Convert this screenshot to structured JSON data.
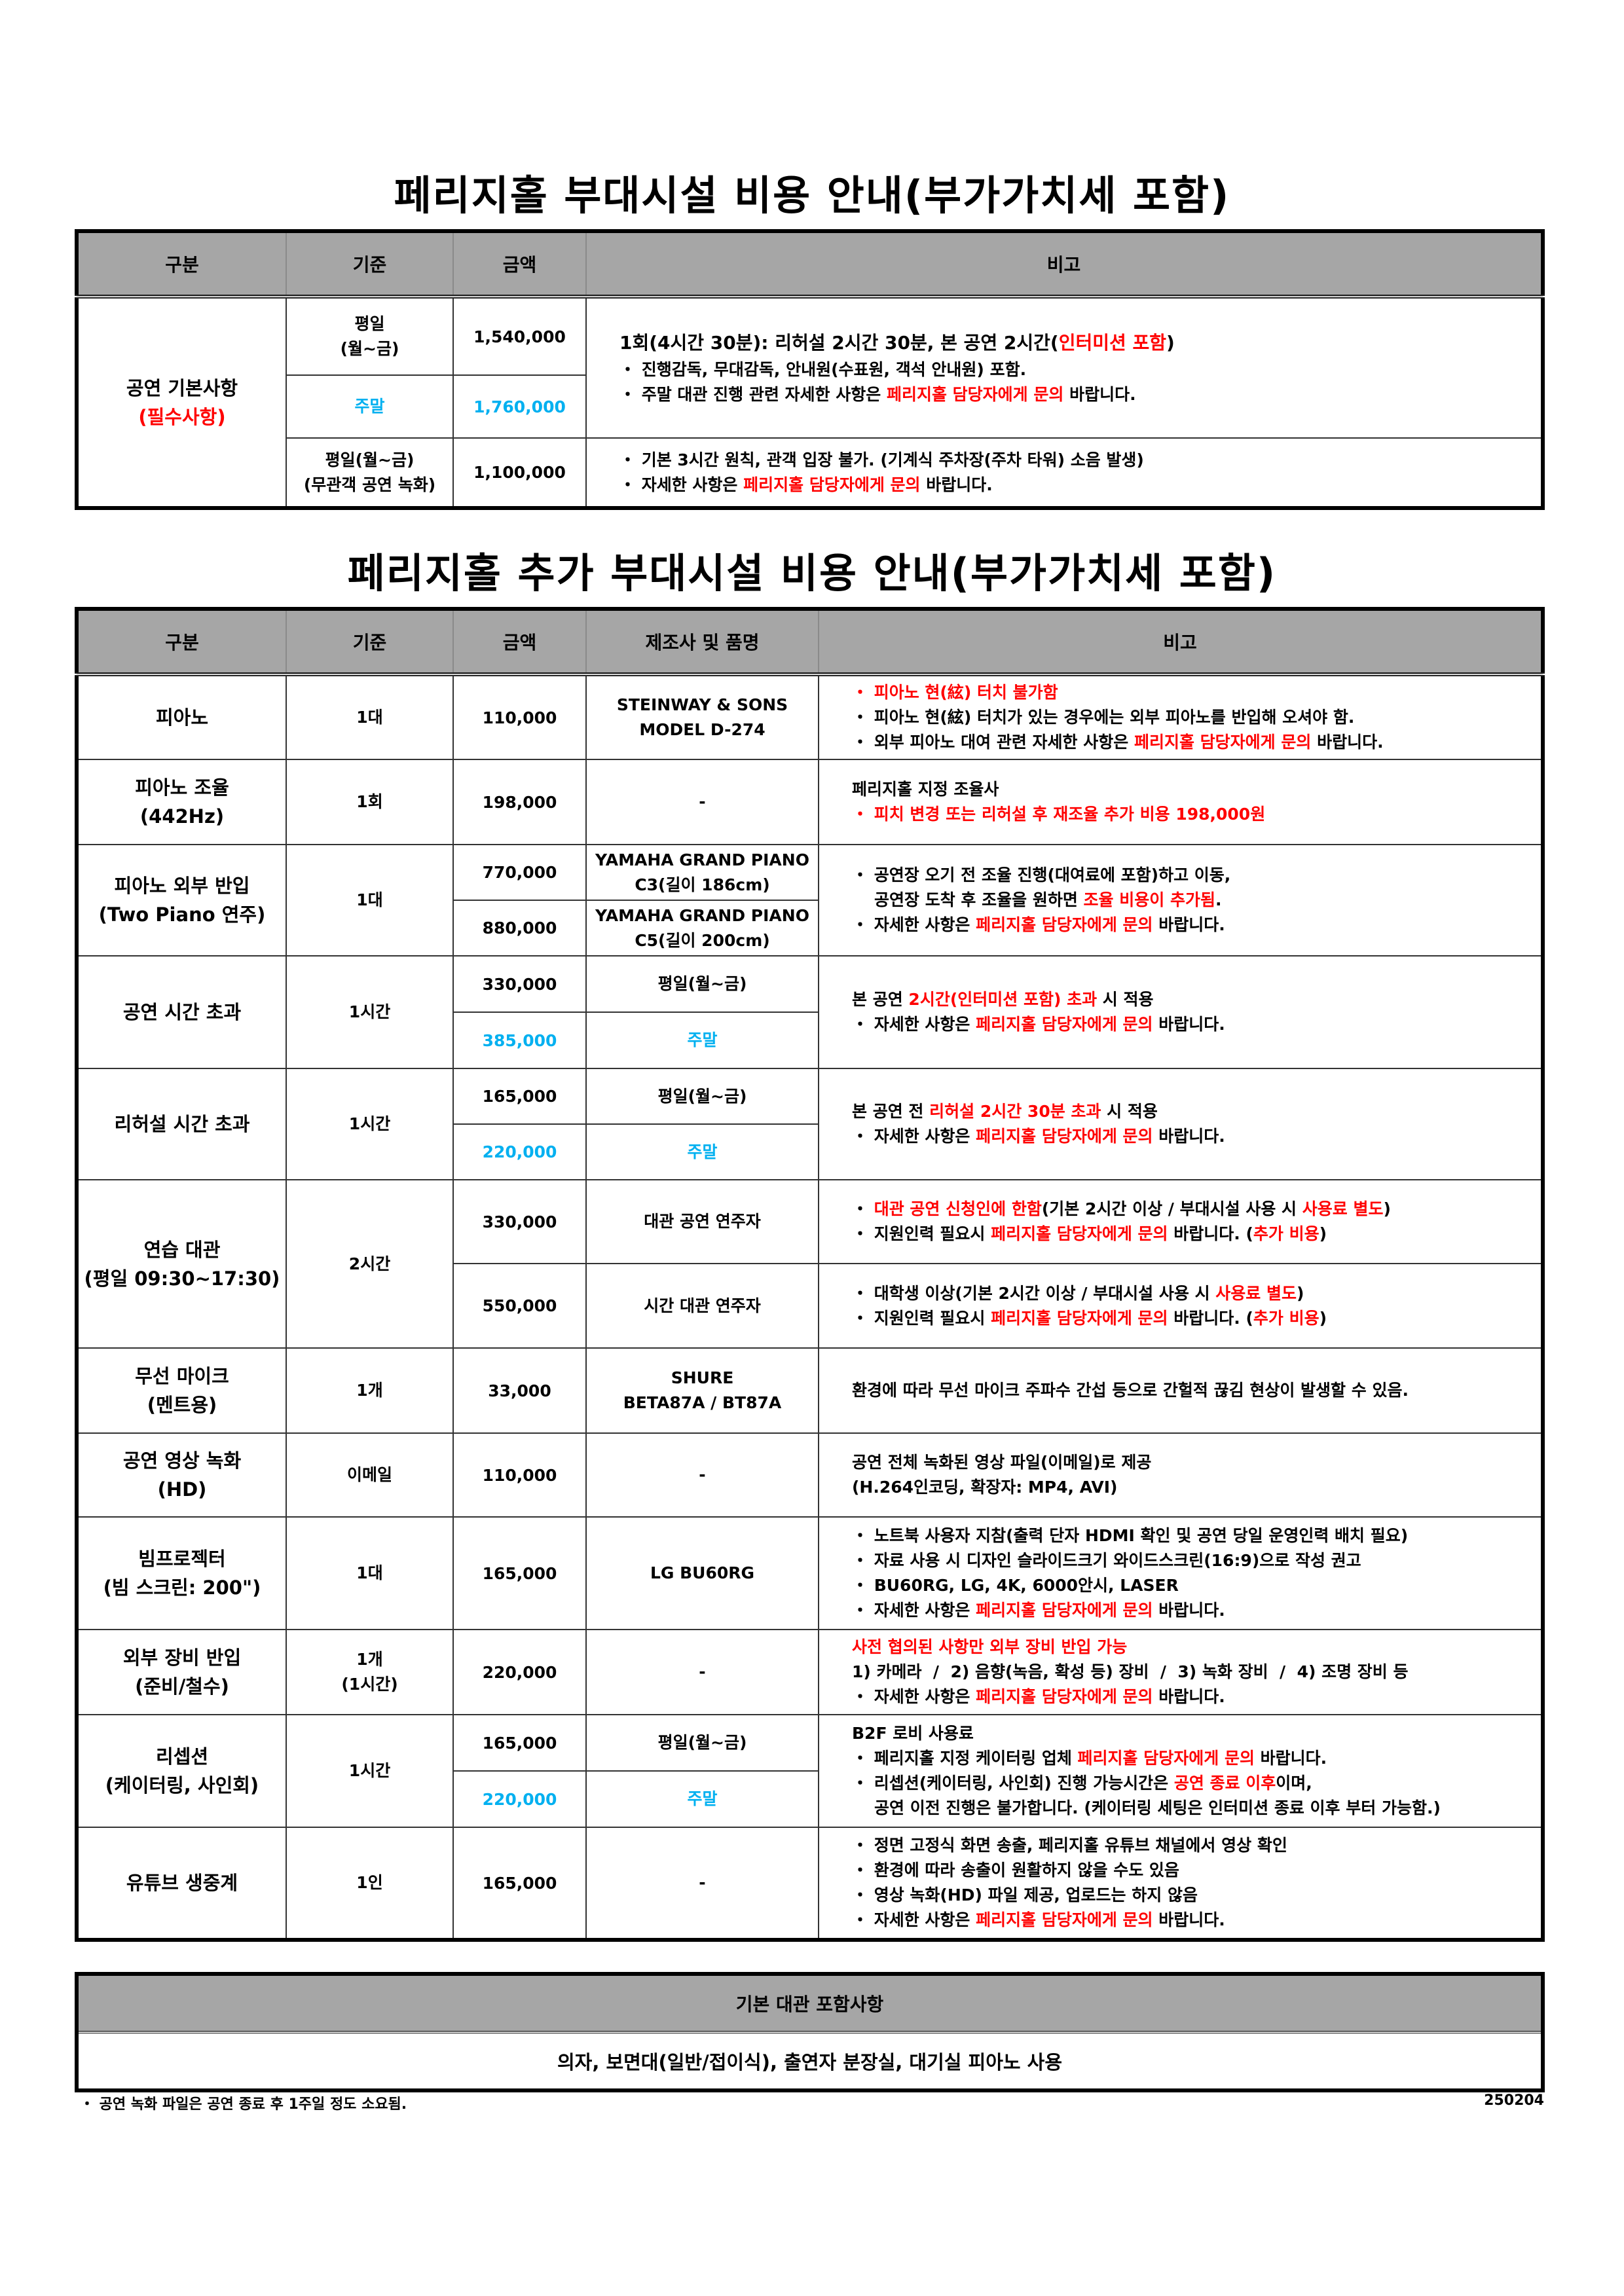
{
  "table1": {
    "title": "페리지홀 부대시설 비용 안내(부가가치세 포함)",
    "headers": [
      "구분",
      "기준",
      "금액",
      "비고"
    ],
    "category": [
      [
        [
          "공연 기본사항"
        ]
      ],
      [
        [
          "(필수사항)",
          "r"
        ]
      ]
    ],
    "subs": [
      {
        "std": [
          [
            [
              "평일"
            ]
          ],
          [
            [
              "(월~금)"
            ]
          ]
        ],
        "price": [
          "1,540,000"
        ],
        "remark": [
          {
            "big": true,
            "s": [
              [
                "1회(4시간 30분): 리허설 2시간 30분, 본 공연 2시간("
              ],
              [
                "인터미션 포함",
                "r"
              ],
              [
                ")"
              ]
            ]
          },
          {
            "s": [
              [
                "・ 진행감독, 무대감독, 안내원(수표원, 객석 안내원) 포함."
              ]
            ]
          },
          {
            "s": []
          },
          {
            "s": [
              [
                "・ 주말 대관 진행 관련 자세한 사항은 "
              ],
              [
                "페리지홀 담당자에게 문의",
                "r"
              ],
              [
                " 바랍니다."
              ]
            ]
          }
        ]
      },
      {
        "std": [
          [
            [
              "주말",
              "b"
            ]
          ]
        ],
        "price": [
          "1,760,000",
          "b"
        ]
      },
      {
        "std": [
          [
            [
              "평일(월~금)"
            ]
          ],
          [
            [
              "(무관객 공연 녹화)"
            ]
          ]
        ],
        "price": [
          "1,100,000"
        ],
        "remark": [
          {
            "s": [
              [
                "・ 기본 3시간 원칙, 관객 입장 불가. (기계식 주차장(주차 타워) 소음 발생)"
              ]
            ]
          },
          {
            "s": [
              [
                "・ 자세한 사항은 "
              ],
              [
                "페리지홀 담당자에게 문의",
                "r"
              ],
              [
                " 바랍니다."
              ]
            ]
          }
        ]
      }
    ]
  },
  "table2": {
    "title": "페리지홀 추가 부대시설 비용 안내(부가가치세 포함)",
    "headers": [
      "구분",
      "기준",
      "금액",
      "제조사 및 품명",
      "비고"
    ],
    "rows": [
      {
        "cat": [
          [
            [
              "피아노"
            ]
          ]
        ],
        "unit": [
          "1대"
        ],
        "subs": [
          {
            "price": [
              "110,000"
            ],
            "maker": [
              [
                [
                  "STEINWAY & SONS"
                ]
              ],
              [
                [
                  "MODEL D-274"
                ]
              ]
            ],
            "remark": [
              {
                "s": [
                  [
                    "・ 피아노 현(絃) 터치 불가함",
                    "r"
                  ]
                ]
              },
              {
                "s": [
                  [
                    "・ 피아노 현(絃) 터치가 있는 경우에는 외부 피아노를 반입해 오셔야 함."
                  ]
                ]
              },
              {
                "s": [
                  [
                    "・ 외부 피아노 대여 관련 자세한 사항은 "
                  ],
                  [
                    "페리지홀 담당자에게 문의",
                    "r"
                  ],
                  [
                    " 바랍니다."
                  ]
                ]
              }
            ]
          }
        ]
      },
      {
        "cat": [
          [
            [
              "피아노 조율"
            ]
          ],
          [
            [
              "(442Hz)"
            ]
          ]
        ],
        "unit": [
          "1회"
        ],
        "subs": [
          {
            "price": [
              "198,000"
            ],
            "maker": [
              [
                [
                  "-"
                ]
              ]
            ],
            "remark": [
              {
                "s": [
                  [
                    "페리지홀 지정 조율사"
                  ]
                ]
              },
              {
                "s": [
                  [
                    "・ 피치 변경 또는 리허설 후 재조율 추가 비용 198,000원",
                    "r"
                  ]
                ]
              }
            ]
          }
        ]
      },
      {
        "cat": [
          [
            [
              "피아노 외부 반입"
            ]
          ],
          [
            [
              "(Two Piano 연주)"
            ]
          ]
        ],
        "unit": [
          "1대"
        ],
        "subs": [
          {
            "price": [
              "770,000"
            ],
            "maker": [
              [
                [
                  "YAMAHA GRAND PIANO"
                ]
              ],
              [
                [
                  "C3(길이 186cm)"
                ]
              ]
            ],
            "remark": [
              {
                "s": [
                  [
                    "・ 공연장 오기 전 조율 진행(대여료에 포함)하고 이동,"
                  ]
                ]
              },
              {
                "cont": true,
                "s": [
                  [
                    "공연장 도착 후 조율을 원하면 "
                  ],
                  [
                    "조율 비용이 추가됨",
                    "r"
                  ],
                  [
                    "."
                  ]
                ]
              },
              {
                "s": [
                  [
                    "・ 자세한 사항은 "
                  ],
                  [
                    "페리지홀 담당자에게 문의",
                    "r"
                  ],
                  [
                    " 바랍니다."
                  ]
                ]
              }
            ]
          },
          {
            "price": [
              "880,000"
            ],
            "maker": [
              [
                [
                  "YAMAHA GRAND PIANO"
                ]
              ],
              [
                [
                  "C5(길이 200cm)"
                ]
              ]
            ]
          }
        ]
      },
      {
        "cat": [
          [
            [
              "공연 시간 초과"
            ]
          ]
        ],
        "unit": [
          "1시간"
        ],
        "subs": [
          {
            "price": [
              "330,000"
            ],
            "maker": [
              [
                [
                  "평일(월~금)"
                ]
              ]
            ],
            "remark": [
              {
                "s": [
                  [
                    "본 공연 "
                  ],
                  [
                    "2시간(인터미션 포함) 초과",
                    "r"
                  ],
                  [
                    " 시 적용"
                  ]
                ]
              },
              {
                "s": [
                  [
                    "・ 자세한 사항은 "
                  ],
                  [
                    "페리지홀 담당자에게 문의",
                    "r"
                  ],
                  [
                    " 바랍니다."
                  ]
                ]
              }
            ]
          },
          {
            "price": [
              "385,000",
              "b"
            ],
            "maker": [
              [
                [
                  "주말",
                  "b"
                ]
              ]
            ]
          }
        ]
      },
      {
        "cat": [
          [
            [
              "리허설 시간 초과"
            ]
          ]
        ],
        "unit": [
          "1시간"
        ],
        "subs": [
          {
            "price": [
              "165,000"
            ],
            "maker": [
              [
                [
                  "평일(월~금)"
                ]
              ]
            ],
            "remark": [
              {
                "s": [
                  [
                    "본 공연 전 "
                  ],
                  [
                    "리허설 2시간 30분 초과",
                    "r"
                  ],
                  [
                    " 시 적용"
                  ]
                ]
              },
              {
                "s": [
                  [
                    "・ 자세한 사항은 "
                  ],
                  [
                    "페리지홀 담당자에게 문의",
                    "r"
                  ],
                  [
                    " 바랍니다."
                  ]
                ]
              }
            ]
          },
          {
            "price": [
              "220,000",
              "b"
            ],
            "maker": [
              [
                [
                  "주말",
                  "b"
                ]
              ]
            ]
          }
        ]
      },
      {
        "cat": [
          [
            [
              "연습 대관"
            ]
          ],
          [
            [
              "(평일 09:30~17:30)"
            ]
          ]
        ],
        "unit": [
          "2시간"
        ],
        "subs": [
          {
            "price": [
              "330,000"
            ],
            "maker": [
              [
                [
                  "대관 공연 연주자"
                ]
              ]
            ],
            "remark": [
              {
                "s": [
                  [
                    "・ "
                  ],
                  [
                    "대관 공연 신청인에 한함",
                    "r"
                  ],
                  [
                    "(기본 2시간 이상 / 부대시설 사용 시 "
                  ],
                  [
                    "사용료 별도",
                    "r"
                  ],
                  [
                    ")"
                  ]
                ]
              },
              {
                "s": [
                  [
                    "・ 지원인력 필요시 "
                  ],
                  [
                    "페리지홀 담당자에게 문의",
                    "r"
                  ],
                  [
                    " 바랍니다. ("
                  ],
                  [
                    "추가 비용",
                    "r"
                  ],
                  [
                    ")"
                  ]
                ]
              }
            ]
          },
          {
            "price": [
              "550,000"
            ],
            "maker": [
              [
                [
                  "시간 대관 연주자"
                ]
              ]
            ],
            "remark": [
              {
                "s": [
                  [
                    "・ 대학생 이상(기본 2시간 이상 / 부대시설 사용 시 "
                  ],
                  [
                    "사용료 별도",
                    "r"
                  ],
                  [
                    ")"
                  ]
                ]
              },
              {
                "s": [
                  [
                    "・ 지원인력 필요시 "
                  ],
                  [
                    "페리지홀 담당자에게 문의",
                    "r"
                  ],
                  [
                    " 바랍니다. ("
                  ],
                  [
                    "추가 비용",
                    "r"
                  ],
                  [
                    ")"
                  ]
                ]
              }
            ]
          }
        ]
      },
      {
        "cat": [
          [
            [
              "무선 마이크"
            ]
          ],
          [
            [
              "(멘트용)"
            ]
          ]
        ],
        "unit": [
          "1개"
        ],
        "subs": [
          {
            "price": [
              "33,000"
            ],
            "maker": [
              [
                [
                  "SHURE"
                ]
              ],
              [
                [
                  "BETA87A / BT87A"
                ]
              ]
            ],
            "remark": [
              {
                "s": [
                  [
                    "환경에 따라 무선 마이크 주파수 간섭 등으로 간헐적 끊김 현상이 발생할 수 있음."
                  ]
                ]
              }
            ]
          }
        ]
      },
      {
        "cat": [
          [
            [
              "공연 영상 녹화"
            ]
          ],
          [
            [
              "(HD)"
            ]
          ]
        ],
        "unit": [
          "이메일"
        ],
        "subs": [
          {
            "price": [
              "110,000"
            ],
            "maker": [
              [
                [
                  "-"
                ]
              ]
            ],
            "remark": [
              {
                "s": [
                  [
                    "공연 전체 녹화된 영상 파일(이메일)로 제공"
                  ]
                ]
              },
              {
                "s": [
                  [
                    "(H.264인코딩, 확장자: MP4, AVI)"
                  ]
                ]
              }
            ]
          }
        ]
      },
      {
        "cat": [
          [
            [
              "빔프로젝터"
            ]
          ],
          [
            [
              "(빔 스크린: 200\")"
            ]
          ]
        ],
        "unit": [
          "1대"
        ],
        "subs": [
          {
            "price": [
              "165,000"
            ],
            "maker": [
              [
                [
                  "LG BU60RG"
                ]
              ]
            ],
            "remark": [
              {
                "s": [
                  [
                    "・ 노트북 사용자 지참(출력 단자 HDMI 확인 및 공연 당일 운영인력 배치 필요)"
                  ]
                ]
              },
              {
                "s": [
                  [
                    "・ 자료 사용 시 디자인 슬라이드크기 와이드스크린(16:9)으로 작성 권고"
                  ]
                ]
              },
              {
                "s": [
                  [
                    "・ BU60RG, LG, 4K, 6000안시, LASER"
                  ]
                ]
              },
              {
                "s": [
                  [
                    "・ 자세한 사항은 "
                  ],
                  [
                    "페리지홀 담당자에게 문의",
                    "r"
                  ],
                  [
                    " 바랍니다."
                  ]
                ]
              }
            ]
          }
        ]
      },
      {
        "cat": [
          [
            [
              "외부 장비 반입"
            ]
          ],
          [
            [
              "(준비/철수)"
            ]
          ]
        ],
        "unit": [
          "1개",
          "(1시간)"
        ],
        "subs": [
          {
            "price": [
              "220,000"
            ],
            "maker": [
              [
                [
                  "-"
                ]
              ]
            ],
            "remark": [
              {
                "s": [
                  [
                    "사전 협의된 사항만 외부 장비 반입 가능",
                    "r"
                  ]
                ]
              },
              {
                "s": [
                  [
                    "1) 카메라  /  2) 음향(녹음, 확성 등) 장비  /  3) 녹화 장비  /  4) 조명 장비 등"
                  ]
                ]
              },
              {
                "s": [
                  [
                    "・ 자세한 사항은 "
                  ],
                  [
                    "페리지홀 담당자에게 문의",
                    "r"
                  ],
                  [
                    " 바랍니다."
                  ]
                ]
              }
            ]
          }
        ]
      },
      {
        "cat": [
          [
            [
              "리셉션"
            ]
          ],
          [
            [
              "(케이터링, 사인회)"
            ]
          ]
        ],
        "unit": [
          "1시간"
        ],
        "subs": [
          {
            "price": [
              "165,000"
            ],
            "maker": [
              [
                [
                  "평일(월~금)"
                ]
              ]
            ],
            "remark": [
              {
                "s": [
                  [
                    "B2F 로비 사용료"
                  ]
                ]
              },
              {
                "s": [
                  [
                    "・ 페리지홀 지정 케이터링 업체 "
                  ],
                  [
                    "페리지홀 담당자에게 문의",
                    "r"
                  ],
                  [
                    " 바랍니다."
                  ]
                ]
              },
              {
                "s": [
                  [
                    "・ 리셉션(케이터링, 사인회) 진행 가능시간은 "
                  ],
                  [
                    "공연 종료 이후",
                    "r"
                  ],
                  [
                    "이며,"
                  ]
                ]
              },
              {
                "cont": true,
                "s": [
                  [
                    "공연 이전 진행은 불가합니다. (케이터링 세팅은 인터미션 종료 이후 부터 가능함.)"
                  ]
                ]
              }
            ]
          },
          {
            "price": [
              "220,000",
              "b"
            ],
            "maker": [
              [
                [
                  "주말",
                  "b"
                ]
              ]
            ]
          }
        ]
      },
      {
        "cat": [
          [
            [
              "유튜브 생중계"
            ]
          ]
        ],
        "unit": [
          "1인"
        ],
        "subs": [
          {
            "price": [
              "165,000"
            ],
            "maker": [
              [
                [
                  "-"
                ]
              ]
            ],
            "remark": [
              {
                "s": [
                  [
                    "・ 정면 고정식 화면 송출, 페리지홀 유튜브 채널에서 영상 확인"
                  ]
                ]
              },
              {
                "s": [
                  [
                    "・ 환경에 따라 송출이 원활하지 않을 수도 있음"
                  ]
                ]
              },
              {
                "s": [
                  [
                    "・ 영상 녹화(HD) 파일 제공, 업로드는 하지 않음"
                  ]
                ]
              },
              {
                "s": [
                  [
                    "・ 자세한 사항은 "
                  ],
                  [
                    "페리지홀 담당자에게 문의",
                    "r"
                  ],
                  [
                    " 바랍니다."
                  ]
                ]
              }
            ]
          }
        ]
      }
    ]
  },
  "table3": {
    "header": "기본 대관 포함사항",
    "body": "의자, 보면대(일반/접이식), 출연자 분장실, 대기실 피아노 사용"
  },
  "footer": {
    "note": "・ 공연 녹화 파일은 공연 종료 후 1주일 정도 소요됨.",
    "code": "250204"
  },
  "colors": {
    "header_bg": "#a6a6a6",
    "highlight_red": "#ff0000",
    "weekend_blue": "#00b0f0"
  }
}
